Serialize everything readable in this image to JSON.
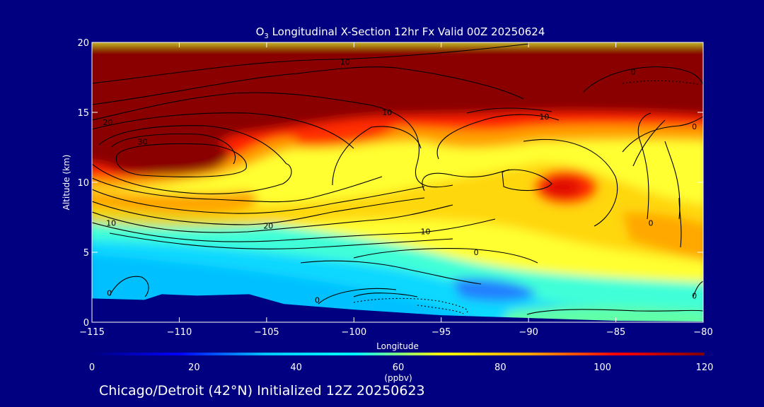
{
  "chart_data": {
    "type": "heatmap",
    "title_prefix": "O",
    "title_sub": "3",
    "title_rest": " Longitudinal X-Section 12hr  Fx Valid 00Z 20250624",
    "xlabel": "Longitude",
    "ylabel": "Altitude (km)",
    "x_range": [
      -115,
      -80
    ],
    "y_range": [
      0,
      20
    ],
    "x_ticks": [
      -115,
      -110,
      -105,
      -100,
      -95,
      -90,
      -85,
      -80
    ],
    "x_tick_labels": [
      "−115",
      "−110",
      "−105",
      "−100",
      "−95",
      "−90",
      "−85",
      "−80"
    ],
    "y_ticks": [
      0,
      5,
      10,
      15,
      20
    ],
    "y_tick_labels": [
      "0",
      "5",
      "10",
      "15",
      "20"
    ],
    "colorbar": {
      "min": 0,
      "max": 120,
      "ticks": [
        0,
        20,
        40,
        60,
        80,
        100,
        120
      ],
      "tick_labels": [
        "0",
        "20",
        "40",
        "60",
        "80",
        "100",
        "120"
      ],
      "unit": "(ppbv)",
      "colors": [
        "#000080",
        "#0000ff",
        "#00c8ff",
        "#00ffff",
        "#ffff00",
        "#ffa500",
        "#ff0000",
        "#800000"
      ]
    },
    "terrain": [
      [
        -115,
        1.7
      ],
      [
        -112,
        1.6
      ],
      [
        -111,
        2.0
      ],
      [
        -109,
        1.9
      ],
      [
        -106,
        2.0
      ],
      [
        -104,
        1.3
      ],
      [
        -100,
        0.9
      ],
      [
        -95,
        0.5
      ],
      [
        -90,
        0.3
      ],
      [
        -85,
        0.1
      ],
      [
        -80,
        0.05
      ]
    ],
    "contour_labels": [
      {
        "text": "10",
        "lon": -100.5,
        "alt": 18.6
      },
      {
        "text": "20",
        "lon": -114.1,
        "alt": 14.3
      },
      {
        "text": "30",
        "lon": -112.1,
        "alt": 12.9
      },
      {
        "text": "10",
        "lon": -98.1,
        "alt": 15.0
      },
      {
        "text": "10",
        "lon": -89.1,
        "alt": 14.7
      },
      {
        "text": "0",
        "lon": -84.0,
        "alt": 17.9
      },
      {
        "text": "0",
        "lon": -80.5,
        "alt": 14.0
      },
      {
        "text": "10",
        "lon": -113.9,
        "alt": 7.1
      },
      {
        "text": "20",
        "lon": -104.9,
        "alt": 6.9
      },
      {
        "text": "10",
        "lon": -95.9,
        "alt": 6.5
      },
      {
        "text": "0",
        "lon": -93.0,
        "alt": 5.0
      },
      {
        "text": "0",
        "lon": -83.0,
        "alt": 7.1
      },
      {
        "text": "0",
        "lon": -114.0,
        "alt": 2.1
      },
      {
        "text": "0",
        "lon": -102.1,
        "alt": 1.6
      },
      {
        "text": "0",
        "lon": -80.5,
        "alt": 1.9
      }
    ]
  },
  "footer": "Chicago/Detroit (42°N) Initialized 12Z 20250623"
}
